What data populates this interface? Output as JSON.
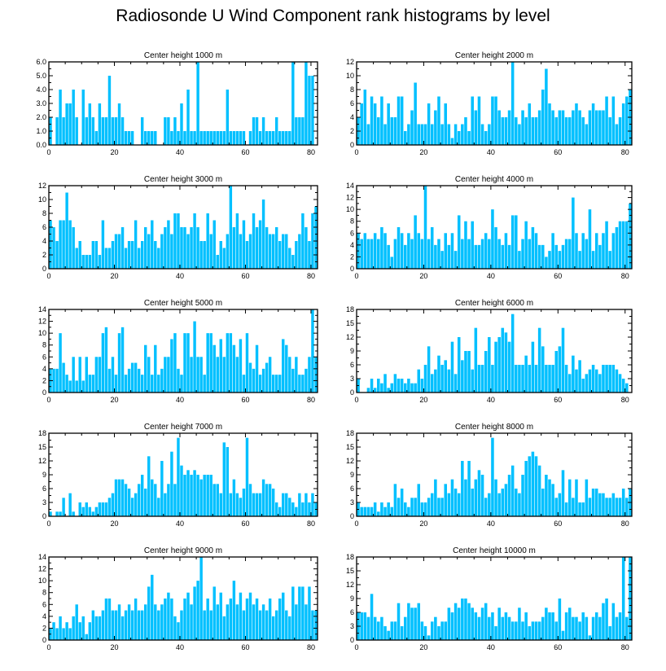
{
  "title": "Radiosonde U Wind Component rank histograms by level",
  "colors": {
    "bar": "#00C0FF",
    "bar_edge": "#1a1a1a",
    "axis": "#000000"
  },
  "chart_data": [
    {
      "type": "bar",
      "title": "Center height 1000 m",
      "xlim": [
        0,
        82
      ],
      "ylim": [
        0,
        6
      ],
      "xticks": [
        0,
        20,
        40,
        60,
        80
      ],
      "yticks": [
        0,
        1,
        2,
        3,
        4,
        5,
        6
      ],
      "ytick_labels": [
        "0.0",
        "1.0",
        "2.0",
        "3.0",
        "4.0",
        "5.0",
        "6.0"
      ],
      "values": [
        2,
        0,
        2,
        4,
        2,
        3,
        3,
        4,
        2,
        0,
        4,
        2,
        3,
        2,
        1,
        3,
        2,
        2,
        5,
        2,
        2,
        3,
        2,
        1,
        1,
        1,
        0,
        0,
        2,
        1,
        1,
        1,
        1,
        0,
        0,
        2,
        2,
        1,
        2,
        1,
        3,
        1,
        4,
        1,
        1,
        6,
        1,
        1,
        1,
        1,
        1,
        1,
        1,
        1,
        4,
        1,
        1,
        1,
        1,
        1,
        0,
        1,
        2,
        2,
        1,
        2,
        1,
        1,
        1,
        2,
        1,
        1,
        1,
        1,
        6,
        2,
        2,
        2,
        6,
        5,
        5,
        0
      ]
    },
    {
      "type": "bar",
      "title": "Center height 2000 m",
      "xlim": [
        0,
        82
      ],
      "ylim": [
        0,
        12
      ],
      "xticks": [
        0,
        20,
        40,
        60,
        80
      ],
      "yticks": [
        0,
        2,
        4,
        6,
        8,
        10,
        12
      ],
      "ytick_labels": [
        "0",
        "2",
        "4",
        "6",
        "8",
        "10",
        "12"
      ],
      "values": [
        4,
        6,
        8,
        3,
        7,
        6,
        4,
        7,
        3,
        6,
        4,
        4,
        7,
        7,
        2,
        3,
        5,
        9,
        3,
        3,
        3,
        6,
        3,
        5,
        7,
        3,
        6,
        3,
        1,
        3,
        2,
        3,
        4,
        2,
        7,
        5,
        7,
        3,
        2,
        3,
        7,
        7,
        5,
        4,
        4,
        5,
        12,
        4,
        3,
        5,
        4,
        6,
        4,
        4,
        5,
        8,
        11,
        6,
        5,
        4,
        5,
        5,
        4,
        4,
        5,
        6,
        5,
        4,
        3,
        5,
        6,
        5,
        5,
        5,
        7,
        4,
        7,
        3,
        4,
        6,
        7,
        8
      ]
    },
    {
      "type": "bar",
      "title": "Center height 3000 m",
      "xlim": [
        0,
        82
      ],
      "ylim": [
        0,
        12
      ],
      "xticks": [
        0,
        20,
        40,
        60,
        80
      ],
      "yticks": [
        0,
        2,
        4,
        6,
        8,
        10,
        12
      ],
      "ytick_labels": [
        "0",
        "2",
        "4",
        "6",
        "8",
        "10",
        "12"
      ],
      "values": [
        7,
        6,
        4,
        7,
        7,
        11,
        7,
        6,
        3,
        4,
        2,
        2,
        2,
        4,
        4,
        2,
        7,
        3,
        3,
        4,
        5,
        5,
        6,
        3,
        4,
        4,
        7,
        3,
        4,
        6,
        5,
        7,
        4,
        3,
        5,
        6,
        7,
        5,
        8,
        8,
        6,
        6,
        5,
        6,
        8,
        6,
        4,
        4,
        8,
        5,
        7,
        2,
        4,
        3,
        5,
        12,
        6,
        8,
        5,
        7,
        4,
        5,
        8,
        6,
        7,
        10,
        6,
        5,
        5,
        6,
        4,
        5,
        5,
        3,
        2,
        4,
        5,
        8,
        6,
        4,
        8,
        9
      ]
    },
    {
      "type": "bar",
      "title": "Center height 4000 m",
      "xlim": [
        0,
        82
      ],
      "ylim": [
        0,
        14
      ],
      "xticks": [
        0,
        20,
        40,
        60,
        80
      ],
      "yticks": [
        0,
        2,
        4,
        6,
        8,
        10,
        12,
        14
      ],
      "ytick_labels": [
        "0",
        "2",
        "4",
        "6",
        "8",
        "10",
        "12",
        "14"
      ],
      "values": [
        6,
        5,
        6,
        5,
        5,
        6,
        5,
        7,
        6,
        4,
        2,
        5,
        7,
        6,
        4,
        6,
        5,
        9,
        6,
        5,
        14,
        5,
        7,
        4,
        5,
        3,
        6,
        4,
        6,
        3,
        9,
        5,
        8,
        5,
        8,
        4,
        4,
        5,
        6,
        5,
        10,
        7,
        5,
        4,
        6,
        4,
        9,
        9,
        3,
        5,
        8,
        5,
        7,
        6,
        4,
        4,
        2,
        3,
        6,
        4,
        3,
        4,
        5,
        5,
        12,
        6,
        3,
        6,
        5,
        10,
        3,
        6,
        4,
        6,
        8,
        3,
        6,
        7,
        8,
        8,
        8,
        11
      ]
    },
    {
      "type": "bar",
      "title": "Center height 5000 m",
      "xlim": [
        0,
        82
      ],
      "ylim": [
        0,
        14
      ],
      "xticks": [
        0,
        20,
        40,
        60,
        80
      ],
      "yticks": [
        0,
        2,
        4,
        6,
        8,
        10,
        12,
        14
      ],
      "ytick_labels": [
        "0",
        "2",
        "4",
        "6",
        "8",
        "10",
        "12",
        "14"
      ],
      "values": [
        4,
        4,
        4,
        10,
        5,
        3,
        2,
        6,
        2,
        6,
        2,
        6,
        3,
        3,
        6,
        6,
        10,
        11,
        4,
        6,
        3,
        10,
        11,
        3,
        4,
        5,
        5,
        4,
        3,
        8,
        6,
        3,
        8,
        3,
        4,
        6,
        6,
        9,
        10,
        4,
        3,
        10,
        10,
        6,
        12,
        6,
        6,
        3,
        10,
        10,
        8,
        6,
        9,
        6,
        10,
        10,
        8,
        6,
        9,
        3,
        10,
        5,
        4,
        8,
        3,
        4,
        5,
        6,
        3,
        3,
        3,
        9,
        8,
        6,
        4,
        6,
        3,
        3,
        4,
        6,
        14,
        6
      ]
    },
    {
      "type": "bar",
      "title": "Center height 6000 m",
      "xlim": [
        0,
        82
      ],
      "ylim": [
        0,
        18
      ],
      "xticks": [
        0,
        20,
        40,
        60,
        80
      ],
      "yticks": [
        0,
        3,
        6,
        9,
        12,
        15,
        18
      ],
      "ytick_labels": [
        "0",
        "3",
        "6",
        "9",
        "12",
        "15",
        "18"
      ],
      "values": [
        3,
        0,
        0,
        1,
        3,
        1,
        3,
        2,
        4,
        1,
        2,
        4,
        3,
        3,
        2,
        3,
        2,
        2,
        5,
        3,
        6,
        10,
        4,
        5,
        8,
        6,
        7,
        5,
        11,
        4,
        12,
        7,
        9,
        9,
        5,
        14,
        6,
        6,
        9,
        12,
        6,
        11,
        12,
        14,
        13,
        11,
        17,
        6,
        6,
        6,
        8,
        6,
        11,
        6,
        14,
        10,
        6,
        6,
        6,
        9,
        10,
        14,
        6,
        4,
        8,
        5,
        7,
        3,
        4,
        5,
        6,
        5,
        4,
        6,
        6,
        6,
        6,
        5,
        4,
        3,
        2,
        0
      ]
    },
    {
      "type": "bar",
      "title": "Center height 7000 m",
      "xlim": [
        0,
        82
      ],
      "ylim": [
        0,
        18
      ],
      "xticks": [
        0,
        20,
        40,
        60,
        80
      ],
      "yticks": [
        0,
        3,
        6,
        9,
        12,
        15,
        18
      ],
      "ytick_labels": [
        "0",
        "3",
        "6",
        "9",
        "12",
        "15",
        "18"
      ],
      "values": [
        1,
        0,
        1,
        1,
        4,
        0,
        5,
        1,
        0,
        3,
        2,
        3,
        2,
        1,
        2,
        3,
        3,
        3,
        4,
        5,
        8,
        8,
        8,
        7,
        6,
        4,
        5,
        7,
        9,
        6,
        13,
        8,
        7,
        4,
        12,
        5,
        7,
        14,
        7,
        17,
        11,
        9,
        10,
        9,
        10,
        9,
        8,
        9,
        9,
        9,
        7,
        7,
        5,
        16,
        15,
        5,
        8,
        5,
        4,
        6,
        17,
        7,
        5,
        5,
        5,
        8,
        7,
        7,
        6,
        3,
        2,
        5,
        5,
        4,
        3,
        2,
        5,
        3,
        5,
        3,
        5,
        3
      ]
    },
    {
      "type": "bar",
      "title": "Center height 8000 m",
      "xlim": [
        0,
        82
      ],
      "ylim": [
        0,
        18
      ],
      "xticks": [
        0,
        20,
        40,
        60,
        80
      ],
      "yticks": [
        0,
        3,
        6,
        9,
        12,
        15,
        18
      ],
      "ytick_labels": [
        "0",
        "3",
        "6",
        "9",
        "12",
        "15",
        "18"
      ],
      "values": [
        3,
        2,
        2,
        2,
        2,
        3,
        1,
        3,
        2,
        3,
        2,
        7,
        4,
        6,
        3,
        2,
        4,
        4,
        7,
        3,
        3,
        4,
        5,
        8,
        4,
        4,
        7,
        5,
        8,
        6,
        5,
        12,
        8,
        12,
        6,
        8,
        10,
        9,
        4,
        5,
        17,
        8,
        5,
        6,
        7,
        9,
        11,
        6,
        5,
        9,
        12,
        13,
        14,
        13,
        11,
        6,
        9,
        8,
        7,
        4,
        5,
        10,
        3,
        8,
        4,
        8,
        3,
        3,
        8,
        4,
        6,
        6,
        5,
        5,
        4,
        4,
        5,
        4,
        4,
        6,
        4,
        6
      ]
    },
    {
      "type": "bar",
      "title": "Center height 9000 m",
      "xlim": [
        0,
        82
      ],
      "ylim": [
        0,
        14
      ],
      "xticks": [
        0,
        20,
        40,
        60,
        80
      ],
      "yticks": [
        0,
        2,
        4,
        6,
        8,
        10,
        12,
        14
      ],
      "ytick_labels": [
        "0",
        "2",
        "4",
        "6",
        "8",
        "10",
        "12",
        "14"
      ],
      "values": [
        2,
        3,
        2,
        4,
        2,
        3,
        2,
        4,
        6,
        3,
        4,
        1,
        3,
        5,
        4,
        4,
        5,
        7,
        7,
        5,
        5,
        6,
        4,
        5,
        6,
        5,
        7,
        5,
        5,
        6,
        9,
        11,
        6,
        5,
        6,
        7,
        8,
        7,
        4,
        3,
        5,
        7,
        8,
        6,
        9,
        10,
        14,
        5,
        7,
        5,
        9,
        6,
        8,
        4,
        6,
        7,
        10,
        6,
        8,
        5,
        7,
        8,
        6,
        7,
        5,
        6,
        5,
        7,
        4,
        5,
        7,
        8,
        5,
        4,
        9,
        6,
        9,
        9,
        6,
        9,
        5,
        5
      ]
    },
    {
      "type": "bar",
      "title": "Center height 10000 m",
      "xlim": [
        0,
        82
      ],
      "ylim": [
        0,
        18
      ],
      "xticks": [
        0,
        20,
        40,
        60,
        80
      ],
      "yticks": [
        0,
        3,
        6,
        9,
        12,
        15,
        18
      ],
      "ytick_labels": [
        "0",
        "3",
        "6",
        "9",
        "12",
        "15",
        "18"
      ],
      "values": [
        6,
        6,
        6,
        5,
        10,
        5,
        4,
        5,
        3,
        2,
        4,
        4,
        8,
        3,
        5,
        8,
        7,
        7,
        8,
        4,
        3,
        1,
        4,
        5,
        3,
        4,
        4,
        7,
        6,
        8,
        7,
        9,
        9,
        8,
        7,
        6,
        5,
        7,
        8,
        5,
        6,
        3,
        7,
        5,
        6,
        5,
        4,
        4,
        7,
        4,
        6,
        3,
        4,
        4,
        4,
        5,
        7,
        6,
        6,
        4,
        9,
        2,
        6,
        7,
        5,
        5,
        4,
        6,
        5,
        1,
        5,
        6,
        5,
        8,
        9,
        3,
        8,
        5,
        6,
        18,
        5,
        18
      ]
    }
  ]
}
